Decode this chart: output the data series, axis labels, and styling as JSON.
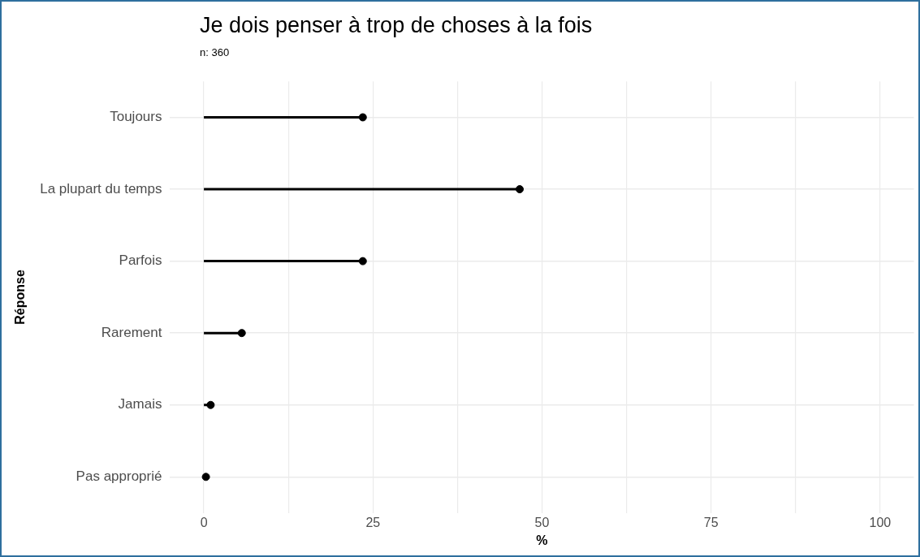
{
  "chart_data": {
    "type": "lollipop",
    "orientation": "horizontal",
    "title": "Je dois penser à trop de choses à la fois",
    "subtitle": "n: 360",
    "xlabel": "%",
    "ylabel": "Réponse",
    "categories": [
      "Toujours",
      "La plupart du temps",
      "Parfois",
      "Rarement",
      "Jamais",
      "Pas approprié"
    ],
    "values": [
      23.5,
      46.7,
      23.5,
      5.6,
      1.0,
      0.3
    ],
    "color": "#000000",
    "marker": "circle",
    "xlim": [
      -5,
      105
    ],
    "xticks": [
      0,
      {
        "value": 12.5,
        "label": null
      },
      25,
      {
        "value": 37.5,
        "label": null
      },
      50,
      {
        "value": 62.5,
        "label": null
      },
      75,
      {
        "value": 87.5,
        "label": null
      },
      100
    ],
    "grid": true,
    "legend": false
  }
}
